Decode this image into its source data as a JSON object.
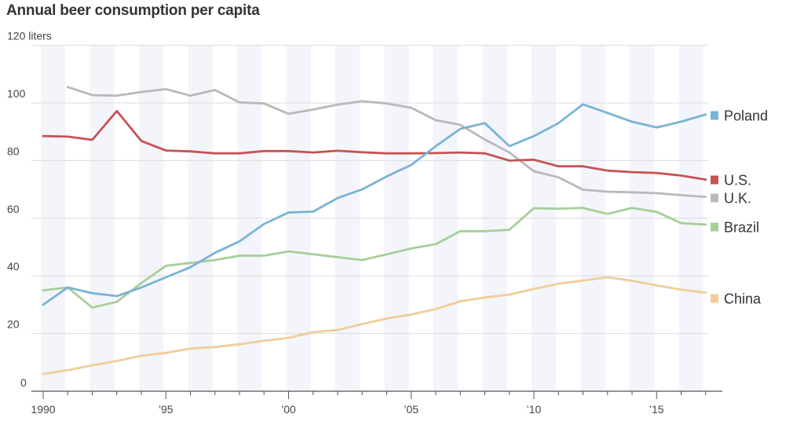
{
  "chart_data": {
    "type": "line",
    "title": "Annual beer consumption per capita",
    "unit": "liters",
    "ylim": [
      0,
      120
    ],
    "yticks": [
      0,
      20,
      40,
      60,
      80,
      100,
      120
    ],
    "ytick_labels": [
      "0",
      "20",
      "40",
      "60",
      "80",
      "100",
      "120 liters"
    ],
    "xlim": [
      1990,
      2017
    ],
    "xticks": [
      1990,
      1995,
      2000,
      2005,
      2010,
      2015
    ],
    "xtick_labels": [
      "1990",
      "’95",
      "’00",
      "’05",
      "’10",
      "’15"
    ],
    "grid": true,
    "legend": "right-end labels",
    "series": [
      {
        "name": "Poland",
        "color": "#7ab3d4",
        "x": [
          1990,
          1991,
          1992,
          1993,
          1994,
          1995,
          1996,
          1997,
          1998,
          1999,
          2000,
          2001,
          2002,
          2003,
          2004,
          2005,
          2006,
          2007,
          2008,
          2009,
          2010,
          2011,
          2012,
          2013,
          2014,
          2015,
          2016,
          2017
        ],
        "values": [
          30,
          36,
          34,
          33,
          36,
          39.5,
          43,
          48,
          52,
          58,
          62,
          62.3,
          67,
          70,
          74.5,
          78.5,
          85,
          91,
          93,
          85,
          88.5,
          93,
          99.5,
          96.5,
          93.5,
          91.5,
          93.5,
          96
        ]
      },
      {
        "name": "U.S.",
        "color": "#c65353",
        "x": [
          1990,
          1991,
          1992,
          1993,
          1994,
          1995,
          1996,
          1997,
          1998,
          1999,
          2000,
          2001,
          2002,
          2003,
          2004,
          2005,
          2006,
          2007,
          2008,
          2009,
          2010,
          2011,
          2012,
          2013,
          2014,
          2015,
          2016,
          2017
        ],
        "values": [
          88.5,
          88.3,
          87.2,
          97.2,
          86.8,
          83.5,
          83.2,
          82.5,
          82.5,
          83.3,
          83.3,
          82.8,
          83.4,
          82.9,
          82.5,
          82.5,
          82.6,
          82.8,
          82.5,
          80,
          80.3,
          78,
          78,
          76.5,
          76,
          75.7,
          74.8,
          73.4
        ]
      },
      {
        "name": "U.K.",
        "color": "#b9b9b9",
        "x": [
          1991,
          1992,
          1993,
          1994,
          1995,
          1996,
          1997,
          1998,
          1999,
          2000,
          2001,
          2002,
          2003,
          2004,
          2005,
          2006,
          2007,
          2008,
          2009,
          2010,
          2011,
          2012,
          2013,
          2014,
          2015,
          2016,
          2017
        ],
        "values": [
          105.5,
          102.7,
          102.5,
          103.8,
          104.8,
          102.5,
          104.5,
          100.2,
          99.8,
          96.2,
          97.7,
          99.4,
          100.6,
          99.8,
          98.3,
          94,
          92.4,
          87.3,
          82.8,
          76.3,
          74.2,
          69.9,
          69.2,
          69,
          68.7,
          68,
          67.4
        ]
      },
      {
        "name": "Brazil",
        "color": "#a6cf98",
        "x": [
          1990,
          1991,
          1992,
          1993,
          1994,
          1995,
          1996,
          1997,
          1998,
          1999,
          2000,
          2001,
          2002,
          2003,
          2004,
          2005,
          2006,
          2007,
          2008,
          2009,
          2010,
          2011,
          2012,
          2013,
          2014,
          2015,
          2016,
          2017
        ],
        "values": [
          35,
          36,
          29,
          31,
          37.5,
          43.5,
          44.5,
          45.5,
          47,
          47,
          48.5,
          47.5,
          46.5,
          45.5,
          47.5,
          49.5,
          51,
          55.5,
          55.5,
          56,
          63.5,
          63.3,
          63.6,
          61.5,
          63.6,
          62.2,
          58.3,
          57.8
        ]
      },
      {
        "name": "China",
        "color": "#f0cd99",
        "x": [
          1990,
          1991,
          1992,
          1993,
          1994,
          1995,
          1996,
          1997,
          1998,
          1999,
          2000,
          2001,
          2002,
          2003,
          2004,
          2005,
          2006,
          2007,
          2008,
          2009,
          2010,
          2011,
          2012,
          2013,
          2014,
          2015,
          2016,
          2017
        ],
        "values": [
          6,
          7.3,
          9,
          10.5,
          12.3,
          13.3,
          14.8,
          15.3,
          16.3,
          17.5,
          18.5,
          20.5,
          21.2,
          23.3,
          25.2,
          26.6,
          28.5,
          31.2,
          32.5,
          33.5,
          35.5,
          37.3,
          38.4,
          39.5,
          38.3,
          36.7,
          35.2,
          34.2
        ]
      }
    ]
  }
}
